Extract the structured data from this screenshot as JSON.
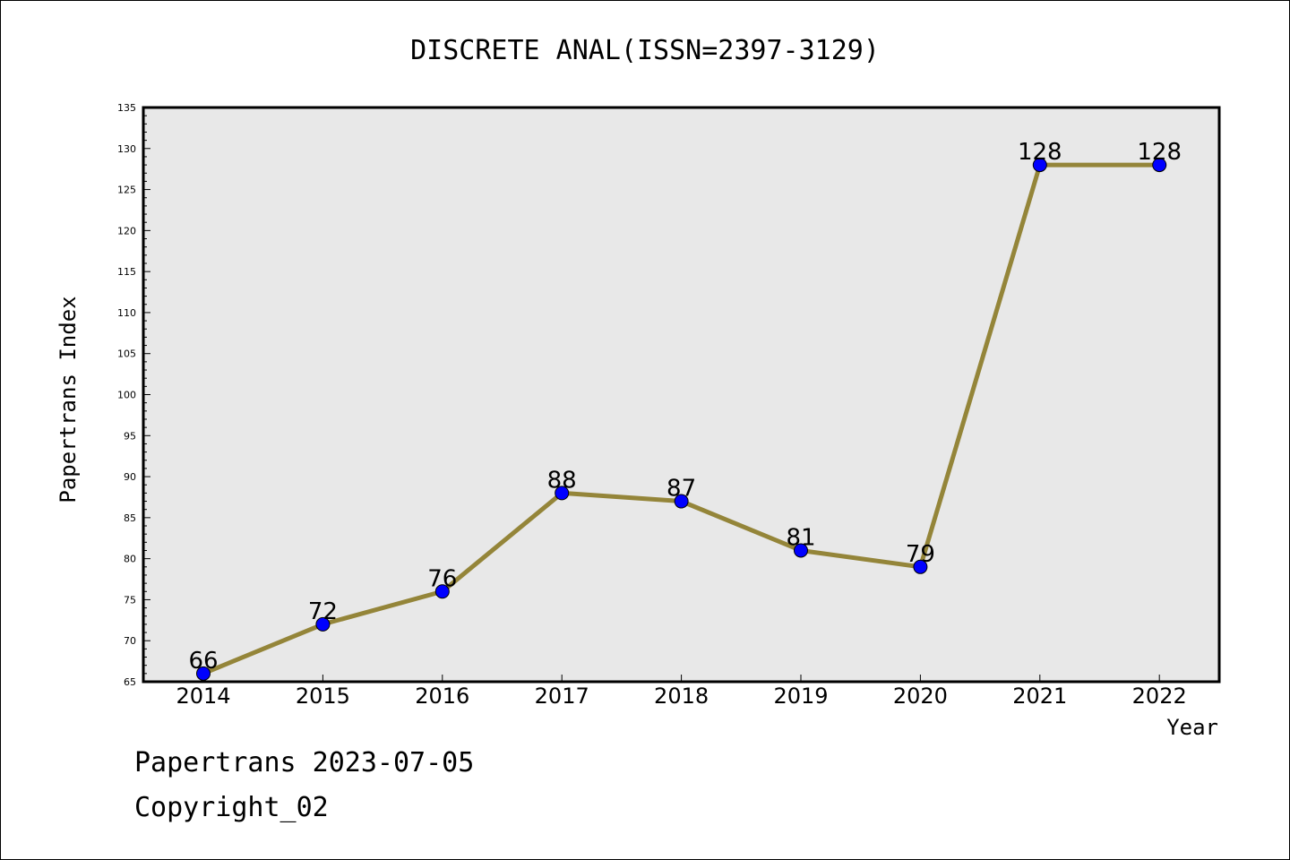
{
  "chart_data": {
    "type": "line",
    "title": "DISCRETE ANAL(ISSN=2397-3129)",
    "xlabel": "Year",
    "ylabel": "Papertrans Index",
    "categories": [
      "2014",
      "2015",
      "2016",
      "2017",
      "2018",
      "2019",
      "2020",
      "2021",
      "2022"
    ],
    "series": [
      {
        "values": [
          66,
          72,
          76,
          88,
          87,
          81,
          79,
          128,
          128
        ]
      }
    ],
    "data_labels": [
      "66",
      "72",
      "76",
      "88",
      "87",
      "81",
      "79",
      "128",
      "128"
    ],
    "ylim": [
      65,
      135
    ],
    "y_ticks": [
      "65",
      "70",
      "75",
      "80",
      "85",
      "90",
      "95",
      "100",
      "105",
      "110",
      "115",
      "120",
      "125",
      "130",
      "135"
    ],
    "grid": false,
    "colors": {
      "line": "#948539",
      "marker": "#0000ff",
      "plot_background": "#e8e8e8"
    }
  },
  "footer": {
    "line1": "Papertrans 2023-07-05",
    "line2": "Copyright_02"
  }
}
